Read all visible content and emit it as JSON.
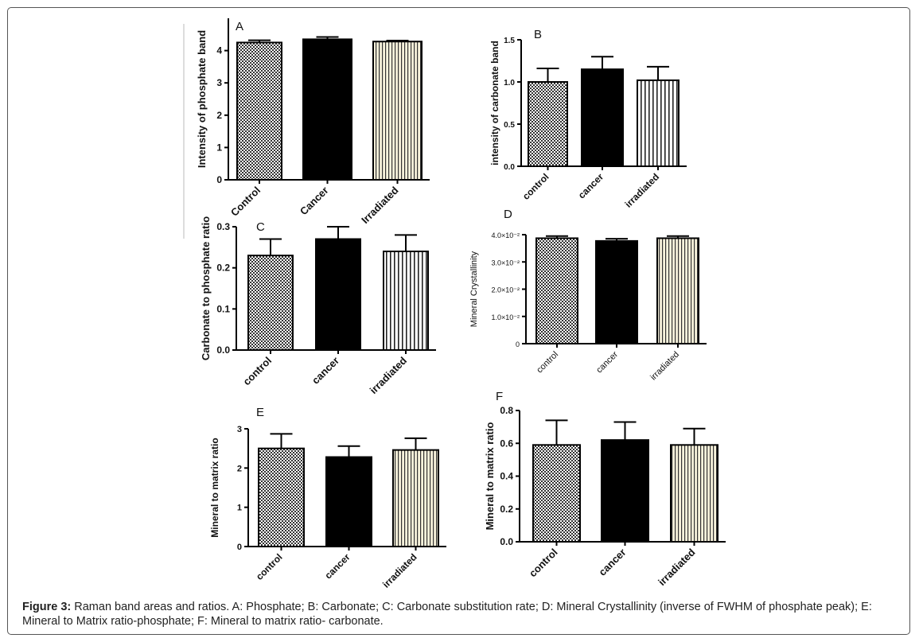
{
  "caption": {
    "label": "Figure 3:",
    "text": "Raman band areas and ratios. A: Phosphate; B: Carbonate; C: Carbonate substitution rate; D: Mineral Crystallinity (inverse of FWHM of phosphate peak); E: Mineral to Matrix ratio-phosphate; F: Mineral to matrix ratio- carbonate."
  },
  "colors": {
    "control_pattern": "checkered",
    "cancer_fill": "#000000",
    "irradiated_fill": "#f6f0d8",
    "error_bar": "#000000"
  },
  "chart_data": [
    {
      "panel": "A",
      "type": "bar",
      "ylabel": "Intensity of phosphate band",
      "categories": [
        "Control",
        "Cancer",
        "Irradiated"
      ],
      "values": [
        4.25,
        4.35,
        4.28
      ],
      "errors": [
        0.07,
        0.07,
        0.03
      ],
      "ylim": [
        0,
        5
      ],
      "yticks": [
        0,
        1,
        2,
        3,
        4
      ],
      "ytick_labels": [
        "0",
        "1",
        "2",
        "3",
        "4"
      ],
      "grid": false
    },
    {
      "panel": "B",
      "type": "bar",
      "ylabel": "intensity of carbonate band",
      "categories": [
        "control",
        "cancer",
        "irradiated"
      ],
      "values": [
        1.0,
        1.15,
        1.02
      ],
      "errors": [
        0.16,
        0.15,
        0.16
      ],
      "ylim": [
        0,
        1.5
      ],
      "yticks": [
        0,
        0.5,
        1.0,
        1.5
      ],
      "ytick_labels": [
        "0.0",
        "0.5",
        "1.0",
        "1.5"
      ],
      "grid": false
    },
    {
      "panel": "C",
      "type": "bar",
      "ylabel": "Carbonate to phosphate ratio",
      "categories": [
        "control",
        "cancer",
        "irradiated"
      ],
      "values": [
        0.23,
        0.27,
        0.24
      ],
      "errors": [
        0.04,
        0.03,
        0.04
      ],
      "ylim": [
        0,
        0.3
      ],
      "yticks": [
        0,
        0.1,
        0.2,
        0.3
      ],
      "ytick_labels": [
        "0.0",
        "0.1",
        "0.2",
        "0.3"
      ],
      "grid": false
    },
    {
      "panel": "D",
      "type": "bar",
      "ylabel": "Mineral Crystallinity",
      "categories": [
        "control",
        "cancer",
        "irradiated"
      ],
      "values": [
        0.0387,
        0.0377,
        0.0387
      ],
      "errors": [
        0.0008,
        0.0008,
        0.0008
      ],
      "ylim": [
        0,
        0.04
      ],
      "yticks": [
        0,
        0.01,
        0.02,
        0.03,
        0.04
      ],
      "ytick_labels": [
        "0",
        "1.0×10⁻²",
        "2.0×10⁻²",
        "3.0×10⁻²",
        "4.0×10⁻²"
      ],
      "grid": false
    },
    {
      "panel": "E",
      "type": "bar",
      "ylabel": "Mineral to matrix ratio",
      "categories": [
        "control",
        "cancer",
        "irradiated"
      ],
      "values": [
        2.5,
        2.28,
        2.46
      ],
      "errors": [
        0.37,
        0.28,
        0.3
      ],
      "ylim": [
        0,
        3
      ],
      "yticks": [
        0,
        1,
        2,
        3
      ],
      "ytick_labels": [
        "0",
        "1",
        "2",
        "3"
      ],
      "grid": false
    },
    {
      "panel": "F",
      "type": "bar",
      "ylabel": "Mineral to matrix ratio",
      "categories": [
        "control",
        "cancer",
        "irradiated"
      ],
      "values": [
        0.59,
        0.62,
        0.59
      ],
      "errors": [
        0.15,
        0.11,
        0.1
      ],
      "ylim": [
        0,
        0.8
      ],
      "yticks": [
        0,
        0.2,
        0.4,
        0.6,
        0.8
      ],
      "ytick_labels": [
        "0.0",
        "0.2",
        "0.4",
        "0.6",
        "0.8"
      ],
      "grid": false
    }
  ]
}
